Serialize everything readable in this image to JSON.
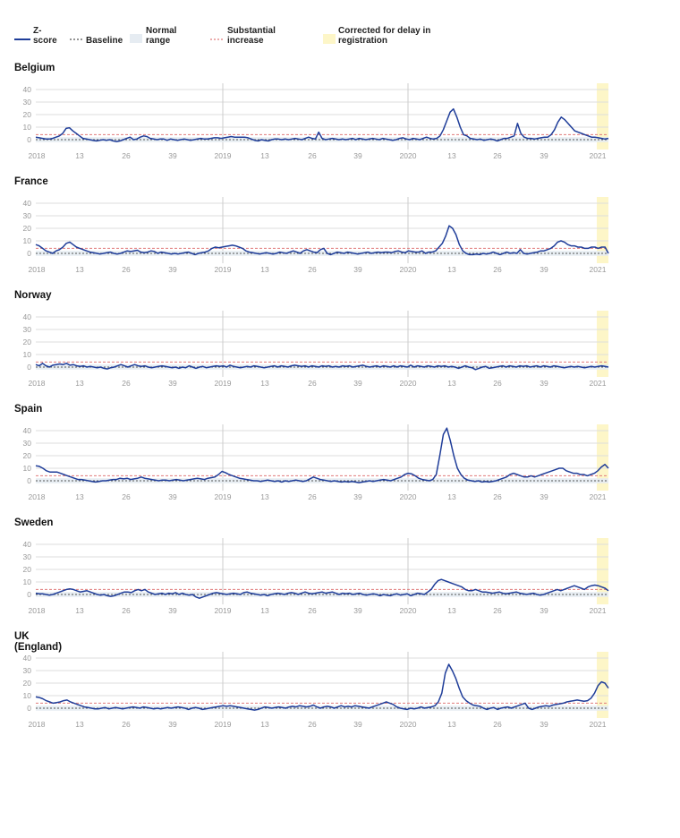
{
  "legend": {
    "zscore": "Z-\nscore",
    "baseline": "Baseline",
    "normal": "Normal\nrange",
    "substantial": "Substantial\nincrease",
    "corrected": "Corrected for delay in\nregistration"
  },
  "colors": {
    "line": "#1f3d99",
    "baseline": "#555555",
    "substantial": "#e07a7a",
    "normal_band": "#e6ecf2",
    "corrected_band": "#fdf6c8",
    "grid": "#dddddd",
    "axis_text": "#999999"
  },
  "chart_data": [
    {
      "type": "line",
      "title": "Belgium",
      "x_ticks": [
        "2018",
        "13",
        "26",
        "39",
        "2019",
        "13",
        "26",
        "39",
        "2020",
        "13",
        "26",
        "39",
        "2021"
      ],
      "y_ticks": [
        0,
        10,
        20,
        30,
        40
      ],
      "ylim": [
        -3,
        45
      ],
      "baseline": 0,
      "normal_range": [
        -2,
        2
      ],
      "substantial_increase": 4,
      "series": [
        {
          "values": [
            2,
            1.5,
            1,
            0.5,
            0.5,
            1,
            2,
            3,
            5,
            9,
            9.5,
            7,
            5,
            3,
            1,
            0.5,
            0,
            -0.5,
            -1,
            -0.5,
            0,
            -0.5,
            0,
            -1,
            -1.5,
            -1,
            0,
            1,
            2,
            0,
            0.5,
            2,
            3,
            2.5,
            1,
            0.5,
            0,
            0.5,
            0.5,
            -0.5,
            0.5,
            0,
            -0.5,
            0,
            0.5,
            0,
            -0.5,
            0,
            0.5,
            1,
            0.5,
            0.5,
            1,
            1.5,
            1.5,
            1,
            1.5,
            2,
            2.5,
            2,
            2,
            2,
            2,
            1.5,
            0.5,
            -0.5,
            -1,
            0,
            -0.5,
            -1,
            0,
            0.5,
            0.5,
            0,
            0.5,
            0,
            0.5,
            1,
            0.5,
            0,
            1,
            2,
            1,
            0.5,
            6,
            1,
            0,
            0.5,
            1,
            0.5,
            0,
            0.5,
            0,
            0.5,
            1,
            0,
            1,
            0.5,
            0,
            0.5,
            1,
            0.5,
            0,
            1,
            0.5,
            0,
            -0.5,
            0,
            1,
            1.5,
            0.5,
            0,
            1,
            0.5,
            0,
            1,
            2,
            1,
            0.5,
            1,
            3,
            8,
            15,
            22,
            24.5,
            18,
            10,
            4,
            3,
            1,
            0.5,
            0,
            0.5,
            -0.5,
            0,
            0.5,
            0,
            -1,
            0,
            1,
            1,
            2,
            3,
            13,
            5,
            2,
            1,
            1,
            0.5,
            1,
            1.5,
            2,
            2,
            4,
            8,
            14,
            18,
            16,
            13,
            10,
            7,
            6,
            5,
            4,
            3,
            2,
            2,
            1.5,
            1,
            0.5,
            1
          ]
        }
      ]
    },
    {
      "type": "line",
      "title": "France",
      "x_ticks": [
        "2018",
        "13",
        "26",
        "39",
        "2019",
        "13",
        "26",
        "39",
        "2020",
        "13",
        "26",
        "39",
        "2021"
      ],
      "y_ticks": [
        0,
        10,
        20,
        30,
        40
      ],
      "ylim": [
        -3,
        45
      ],
      "baseline": 0,
      "normal_range": [
        -2,
        2
      ],
      "substantial_increase": 4,
      "series": [
        {
          "values": [
            7,
            6,
            4,
            2,
            1,
            0,
            2,
            3,
            5,
            8,
            9,
            7,
            5,
            4,
            3,
            2,
            1,
            0.5,
            0,
            -0.5,
            0,
            0.5,
            1,
            0,
            -0.5,
            0,
            1,
            2,
            1.5,
            2,
            2.5,
            1,
            0.5,
            1,
            2,
            1.5,
            0,
            1,
            0.5,
            0,
            -0.5,
            0,
            -0.5,
            0,
            0.5,
            1,
            0,
            -1,
            0,
            0.5,
            1,
            2,
            4,
            5,
            4.5,
            5,
            5.5,
            6,
            6.5,
            6,
            5,
            4,
            2,
            1,
            0.5,
            0,
            -0.5,
            0,
            0.5,
            0,
            -0.5,
            0,
            1,
            0.5,
            0,
            1,
            2,
            1,
            0,
            2,
            3,
            2,
            1,
            0.5,
            3,
            4,
            0,
            -1,
            0,
            1,
            0.5,
            0,
            1,
            0.5,
            0,
            -0.5,
            0,
            0.5,
            1,
            0,
            0.5,
            1,
            0.5,
            1,
            1,
            0.5,
            1.5,
            2,
            1,
            0.5,
            2,
            1.5,
            1,
            1,
            2,
            0,
            1,
            1,
            2,
            5,
            8,
            14,
            22,
            20,
            15,
            7,
            2,
            0,
            -1,
            -1,
            -0.5,
            -1,
            0,
            -0.5,
            0,
            1,
            0,
            -1,
            0,
            1,
            0,
            0.5,
            0,
            3,
            0,
            -0.5,
            0,
            0.5,
            1,
            2,
            2,
            3,
            4,
            6,
            9,
            10,
            9,
            7,
            6,
            6,
            5,
            5,
            4,
            4,
            5,
            5,
            4,
            5,
            5,
            0
          ]
        }
      ]
    },
    {
      "type": "line",
      "title": "Norway",
      "x_ticks": [
        "2018",
        "13",
        "26",
        "39",
        "2019",
        "13",
        "26",
        "39",
        "2020",
        "13",
        "26",
        "39",
        "2021"
      ],
      "y_ticks": [
        0,
        10,
        20,
        30,
        40
      ],
      "ylim": [
        -3,
        45
      ],
      "baseline": 0,
      "normal_range": [
        -2,
        2
      ],
      "substantial_increase": 4,
      "series": [
        {
          "values": [
            2,
            1,
            3,
            1,
            0,
            1.5,
            2,
            2.5,
            2,
            3,
            1.5,
            2,
            1,
            0.5,
            1,
            0,
            0.5,
            0,
            -0.5,
            0,
            -1,
            -1.5,
            -0.5,
            0,
            1,
            2,
            1,
            0,
            1,
            2,
            1,
            0.5,
            1,
            0,
            -0.5,
            0,
            0.5,
            1,
            0.5,
            0,
            -0.5,
            0,
            -1,
            0,
            -0.5,
            1,
            0,
            -1,
            0,
            0.5,
            -0.5,
            0,
            0.5,
            1,
            0.5,
            1,
            0,
            1.5,
            0.5,
            0,
            -0.5,
            0,
            0.5,
            0,
            1,
            0.5,
            0,
            -0.5,
            0,
            0.5,
            1,
            0,
            1,
            0.5,
            0,
            1,
            1.5,
            1,
            0.5,
            1,
            0,
            1,
            0.5,
            0,
            1,
            0.5,
            1,
            0,
            0.5,
            0,
            1,
            0.5,
            1,
            0,
            0.5,
            1,
            1.5,
            0.5,
            0,
            0.5,
            1,
            0,
            1,
            0.5,
            0,
            1,
            0,
            1,
            0.5,
            0,
            1.5,
            0,
            1,
            0.5,
            0,
            1,
            0.5,
            0,
            1,
            0.5,
            1,
            0,
            0.5,
            0,
            -1,
            0,
            1,
            0,
            -0.5,
            -2,
            -1,
            0,
            0.5,
            -1,
            -0.5,
            0,
            0.5,
            1,
            0,
            1,
            0.5,
            0,
            1,
            0.5,
            1,
            0,
            0.5,
            1,
            0,
            1,
            0.5,
            0,
            1,
            0.5,
            0,
            -0.5,
            0,
            0.5,
            0,
            0.5,
            0,
            -0.5,
            0,
            0.5,
            0,
            0.5,
            1,
            0.5,
            0
          ]
        }
      ]
    },
    {
      "type": "line",
      "title": "Spain",
      "x_ticks": [
        "2018",
        "13",
        "26",
        "39",
        "2019",
        "13",
        "26",
        "39",
        "2020",
        "13",
        "26",
        "39",
        "2021"
      ],
      "y_ticks": [
        0,
        10,
        20,
        30,
        40
      ],
      "ylim": [
        -3,
        45
      ],
      "baseline": 0,
      "normal_range": [
        -2,
        2
      ],
      "substantial_increase": 4,
      "series": [
        {
          "values": [
            12,
            11.5,
            10,
            8,
            7,
            7,
            7,
            6,
            5,
            4,
            3,
            2,
            1,
            1,
            0.5,
            0,
            -0.5,
            -1,
            -0.5,
            0,
            0,
            0.5,
            1,
            1,
            2,
            1.5,
            2,
            1,
            1.5,
            2,
            3,
            2,
            1.5,
            1,
            0.5,
            0,
            0.5,
            0.5,
            0,
            0.5,
            1,
            0.5,
            0,
            0.5,
            1,
            1.5,
            2,
            1.5,
            1,
            2,
            2.5,
            3,
            5,
            7.5,
            6.5,
            5,
            4,
            3,
            2,
            1.5,
            1,
            0.5,
            0,
            0,
            -0.5,
            0,
            0.5,
            0,
            -0.5,
            0,
            -1,
            0,
            -0.5,
            0,
            0.5,
            0,
            -0.5,
            0,
            1.5,
            3,
            2,
            1,
            0.5,
            0,
            -0.5,
            0,
            -0.5,
            -1,
            -0.5,
            -1,
            -0.5,
            -1,
            -1.5,
            -1,
            -0.5,
            0,
            -0.5,
            0,
            0.5,
            1,
            0.5,
            0,
            1,
            2,
            3,
            5,
            6,
            5.5,
            4,
            2,
            1,
            0.5,
            0,
            1,
            5,
            20,
            37,
            42,
            32,
            20,
            10,
            5,
            2,
            0.5,
            0,
            -0.5,
            0,
            -1,
            -0.5,
            -1,
            -0.5,
            0,
            1,
            2,
            3,
            5,
            6,
            5,
            4,
            3,
            3,
            4,
            3,
            4,
            5,
            6,
            7,
            8,
            9,
            10,
            10,
            8,
            7,
            6,
            6,
            5,
            5,
            4,
            5,
            6,
            8,
            11,
            13,
            10
          ]
        }
      ]
    },
    {
      "type": "line",
      "title": "Sweden",
      "x_ticks": [
        "2018",
        "13",
        "26",
        "39",
        "2019",
        "13",
        "26",
        "39",
        "2020",
        "13",
        "26",
        "39",
        "2021"
      ],
      "y_ticks": [
        0,
        10,
        20,
        30,
        40
      ],
      "ylim": [
        -3,
        45
      ],
      "baseline": 0,
      "normal_range": [
        -2,
        2
      ],
      "substantial_increase": 4,
      "series": [
        {
          "values": [
            1,
            0.5,
            0.5,
            0,
            -0.5,
            0,
            1,
            2,
            3,
            4,
            4.5,
            4,
            3,
            2,
            2.5,
            3,
            2,
            1,
            0,
            -0.5,
            0,
            -1,
            -1.5,
            -1,
            0,
            1,
            2,
            2,
            1.5,
            3,
            4,
            3,
            4,
            2,
            1,
            0,
            0.5,
            1,
            0,
            1,
            0.5,
            1.5,
            0,
            1,
            0,
            -0.5,
            0,
            -2,
            -3,
            -2,
            -1,
            0,
            1,
            1.5,
            1,
            0.5,
            0,
            0.5,
            1,
            0.5,
            0,
            1.5,
            2,
            1,
            0.5,
            0,
            -0.5,
            0,
            -1,
            0,
            0.5,
            1,
            0.5,
            0,
            1,
            1.5,
            1,
            0,
            1,
            2,
            1,
            0.5,
            1,
            1.5,
            2,
            1,
            1.5,
            2,
            1,
            0,
            1,
            0.5,
            1,
            0,
            0.5,
            1,
            0,
            -0.5,
            0,
            0.5,
            0,
            -1,
            0,
            -0.5,
            -1,
            0,
            0.5,
            -0.5,
            0,
            0.5,
            -1,
            0,
            1,
            0.5,
            0,
            2,
            4,
            8,
            11,
            12,
            11,
            10,
            9,
            8,
            7,
            6,
            4,
            3,
            3,
            4,
            3,
            2,
            2,
            1.5,
            1,
            1.5,
            2,
            1,
            0.5,
            1,
            1.5,
            2,
            1,
            0.5,
            0,
            0.5,
            1,
            0,
            -0.5,
            0,
            1,
            2,
            3,
            4,
            3,
            4,
            5,
            6,
            7,
            6,
            5,
            4,
            6,
            7,
            7.5,
            7,
            6,
            5,
            3
          ]
        }
      ]
    },
    {
      "type": "line",
      "title": "UK (England)",
      "x_ticks": [
        "2018",
        "13",
        "26",
        "39",
        "2019",
        "13",
        "26",
        "39",
        "2020",
        "13",
        "26",
        "39",
        "2021"
      ],
      "y_ticks": [
        0,
        10,
        20,
        30,
        40
      ],
      "ylim": [
        -3,
        45
      ],
      "baseline": 0,
      "normal_range": [
        -2,
        2
      ],
      "substantial_increase": 4,
      "series": [
        {
          "values": [
            9,
            8.5,
            7.5,
            6,
            5,
            4,
            4.5,
            5,
            6,
            6.5,
            5,
            4,
            3,
            2,
            1,
            0.5,
            0,
            -0.5,
            -0.5,
            0,
            0.5,
            -0.5,
            0,
            0.5,
            0,
            -0.5,
            0,
            0.5,
            1,
            0.5,
            0,
            1,
            0.5,
            0,
            -0.5,
            0,
            -0.5,
            0,
            0.5,
            0,
            0.5,
            1,
            0.5,
            0,
            -1,
            0,
            0.5,
            0,
            -1,
            -0.5,
            0,
            0.5,
            1,
            1.5,
            2,
            1.5,
            2,
            1.5,
            1,
            0.5,
            0,
            -0.5,
            -1,
            -1.5,
            -1,
            0,
            1,
            0.5,
            0,
            0.5,
            1,
            0.5,
            0,
            1,
            1.5,
            1,
            2,
            1.5,
            1,
            1.5,
            2.5,
            1,
            0,
            1,
            1.5,
            1,
            0,
            1,
            2,
            1,
            1.5,
            1,
            2,
            1.5,
            1,
            0.5,
            0,
            1,
            2,
            3,
            4,
            5,
            4,
            3,
            1,
            0,
            -0.5,
            -1,
            0,
            -0.5,
            0,
            1,
            0,
            0.5,
            1,
            2,
            5,
            12,
            28,
            35,
            30,
            24,
            16,
            9,
            6,
            4,
            2.5,
            2,
            1.5,
            0,
            -1,
            0,
            0.5,
            -1,
            0,
            0.5,
            1,
            0,
            1,
            2,
            3,
            4,
            0,
            -1,
            0,
            1,
            1.5,
            2,
            1.5,
            2.5,
            3,
            3.5,
            4,
            5,
            5.5,
            6,
            6.5,
            6,
            5.5,
            6,
            8,
            12,
            18,
            21,
            20,
            16
          ]
        }
      ]
    }
  ]
}
